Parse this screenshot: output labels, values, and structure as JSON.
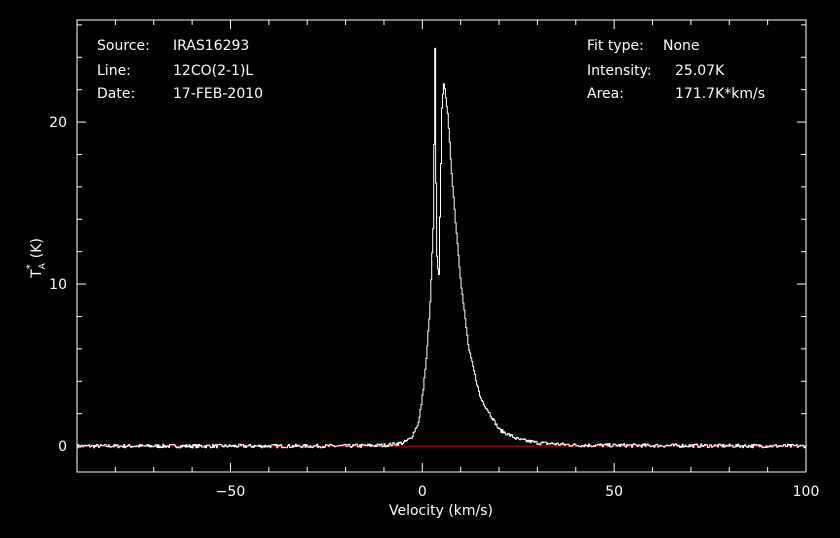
{
  "colors": {
    "background": "#000000",
    "axes": "#ffffff",
    "spectrum": "#ffffff",
    "baseline": "#cc0000"
  },
  "info_left": {
    "source_label": "Source:",
    "source_value": "IRAS16293",
    "line_label": "Line:",
    "line_value": "12CO(2-1)L",
    "date_label": "Date:",
    "date_value": "17-FEB-2010"
  },
  "info_right": {
    "fit_label": "Fit type:",
    "fit_value": "None",
    "intensity_label": "Intensity:",
    "intensity_value": "25.07K",
    "area_label": "Area:",
    "area_value": "171.7K*km/s"
  },
  "chart_data": {
    "type": "line",
    "title": "",
    "xlabel": "Velocity (km/s)",
    "ylabel_main": "T",
    "ylabel_sub": "A",
    "ylabel_sup": "*",
    "ylabel_unit": "(K)",
    "xlim": [
      -90,
      100
    ],
    "ylim": [
      -1.6,
      26.3
    ],
    "x_ticks_major": [
      -50,
      0,
      50,
      100
    ],
    "x_tick_labels": [
      "−50",
      "0",
      "50",
      "100"
    ],
    "y_ticks_major": [
      0,
      10,
      20
    ],
    "y_tick_labels": [
      "0",
      "10",
      "20"
    ],
    "baseline_y": 0,
    "series": [
      {
        "x": [
          -90,
          -20,
          -10,
          -5,
          -3,
          -1,
          0,
          1,
          2,
          2.8,
          3.2,
          3.6,
          4.2,
          5,
          5.6,
          6.5,
          7.5,
          8.5,
          10,
          12,
          15,
          20,
          25,
          30,
          40,
          100
        ],
        "y": [
          0,
          0,
          0.05,
          0.2,
          0.5,
          1.5,
          3.2,
          5.5,
          9,
          14,
          25.07,
          12,
          10.2,
          21,
          22.5,
          20.5,
          17,
          14,
          10,
          6,
          3,
          1,
          0.4,
          0.2,
          0.05,
          0
        ]
      }
    ]
  }
}
